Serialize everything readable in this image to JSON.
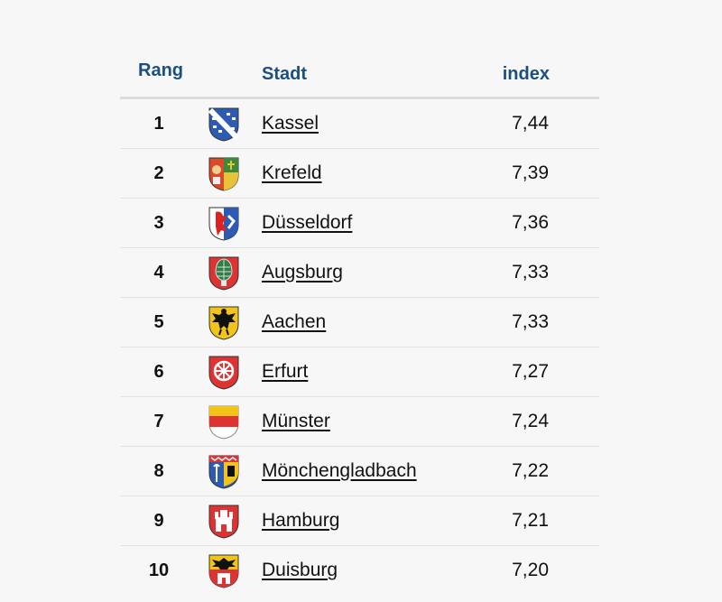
{
  "header": {
    "rank": "Rang",
    "city": "Stadt",
    "index": "index"
  },
  "rows": [
    {
      "rank": "1",
      "city": "Kassel",
      "index": "7,44",
      "crest": "kassel-crest-icon"
    },
    {
      "rank": "2",
      "city": "Krefeld",
      "index": "7,39",
      "crest": "krefeld-crest-icon"
    },
    {
      "rank": "3",
      "city": "Düsseldorf",
      "index": "7,36",
      "crest": "duesseldorf-crest-icon"
    },
    {
      "rank": "4",
      "city": "Augsburg",
      "index": "7,33",
      "crest": "augsburg-crest-icon"
    },
    {
      "rank": "5",
      "city": "Aachen",
      "index": "7,33",
      "crest": "aachen-crest-icon"
    },
    {
      "rank": "6",
      "city": "Erfurt",
      "index": "7,27",
      "crest": "erfurt-crest-icon"
    },
    {
      "rank": "7",
      "city": "Münster",
      "index": "7,24",
      "crest": "muenster-crest-icon"
    },
    {
      "rank": "8",
      "city": "Mönchengladbach",
      "index": "7,22",
      "crest": "moenchengladbach-crest-icon"
    },
    {
      "rank": "9",
      "city": "Hamburg",
      "index": "7,21",
      "crest": "hamburg-crest-icon"
    },
    {
      "rank": "10",
      "city": "Duisburg",
      "index": "7,20",
      "crest": "duisburg-crest-icon"
    }
  ],
  "colors": {
    "header_text": "#1b4f80",
    "background": "#f7f7f7"
  }
}
